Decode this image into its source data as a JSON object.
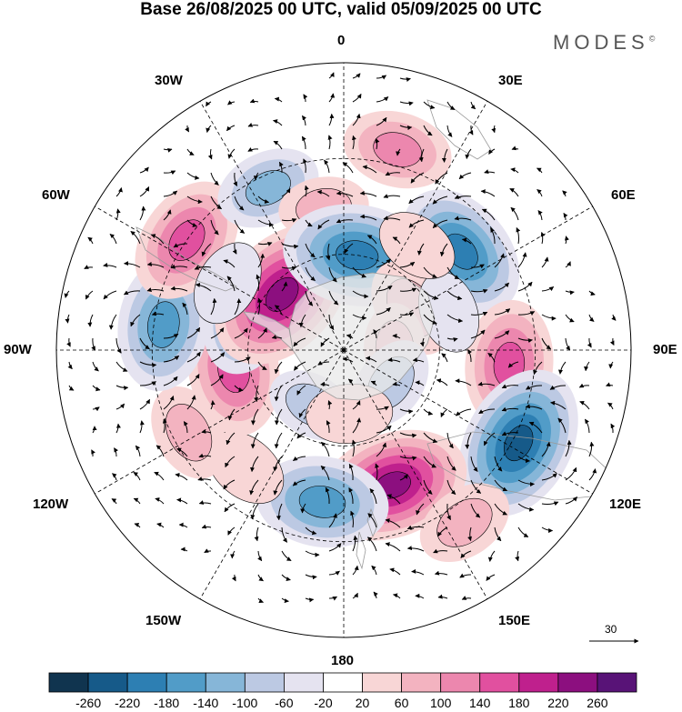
{
  "title": "Base 26/08/2025 00 UTC, valid 05/09/2025 00 UTC",
  "brand": "MODES",
  "brand_mark": "©",
  "longitude_labels": {
    "n": "0",
    "ne30": "30E",
    "ne60": "60E",
    "e": "90E",
    "se120": "120E",
    "se150": "150E",
    "s": "180",
    "sw150": "150W",
    "sw120": "120W",
    "w": "90W",
    "nw60": "60W",
    "nw30": "30W"
  },
  "reference_vector": {
    "label": "30"
  },
  "colorbar": {
    "ticks": [
      "-260",
      "-220",
      "-180",
      "-140",
      "-100",
      "-60",
      "-20",
      "20",
      "60",
      "100",
      "140",
      "180",
      "220",
      "260"
    ],
    "colors": [
      "#10344f",
      "#165a89",
      "#2d7fb3",
      "#519cc8",
      "#86b6d8",
      "#bcc9e3",
      "#e5e3f0",
      "#ffffff",
      "#f8d6d6",
      "#f3b3c0",
      "#ec87ae",
      "#e1509f",
      "#bf208d",
      "#8c0f7f",
      "#581377"
    ]
  },
  "anomalies": [
    {
      "lon": 15,
      "colat": 65,
      "v": 120
    },
    {
      "lon": 50,
      "colat": 48,
      "v": -200
    },
    {
      "lon": 95,
      "colat": 52,
      "v": 170
    },
    {
      "lon": 118,
      "colat": 62,
      "v": -240
    },
    {
      "lon": 160,
      "colat": 45,
      "v": 230
    },
    {
      "lon": 145,
      "colat": 66,
      "v": 90
    },
    {
      "lon": -172,
      "colat": 48,
      "v": -180
    },
    {
      "lon": -140,
      "colat": 48,
      "v": 60
    },
    {
      "lon": -118,
      "colat": 55,
      "v": 90
    },
    {
      "lon": -100,
      "colat": 35,
      "v": 180
    },
    {
      "lon": -82,
      "colat": 57,
      "v": -180
    },
    {
      "lon": -70,
      "colat": 32,
      "v": -150
    },
    {
      "lon": -55,
      "colat": 60,
      "v": 170
    },
    {
      "lon": -48,
      "colat": 26,
      "v": 250
    },
    {
      "lon": -25,
      "colat": 56,
      "v": -110
    },
    {
      "lon": -8,
      "colat": 45,
      "v": 70
    },
    {
      "lon": 8,
      "colat": 30,
      "v": -220
    },
    {
      "lon": 58,
      "colat": 25,
      "v": 100
    },
    {
      "lon": 88,
      "colat": 16,
      "v": 70
    },
    {
      "lon": 125,
      "colat": 18,
      "v": -80
    },
    {
      "lon": -150,
      "colat": 20,
      "v": -70
    },
    {
      "lon": 175,
      "colat": 20,
      "v": 60
    },
    {
      "lon": 70,
      "colat": 35,
      "v": -50
    },
    {
      "lon": 35,
      "colat": 40,
      "v": 50
    },
    {
      "lon": -60,
      "colat": 42,
      "v": -60
    }
  ]
}
